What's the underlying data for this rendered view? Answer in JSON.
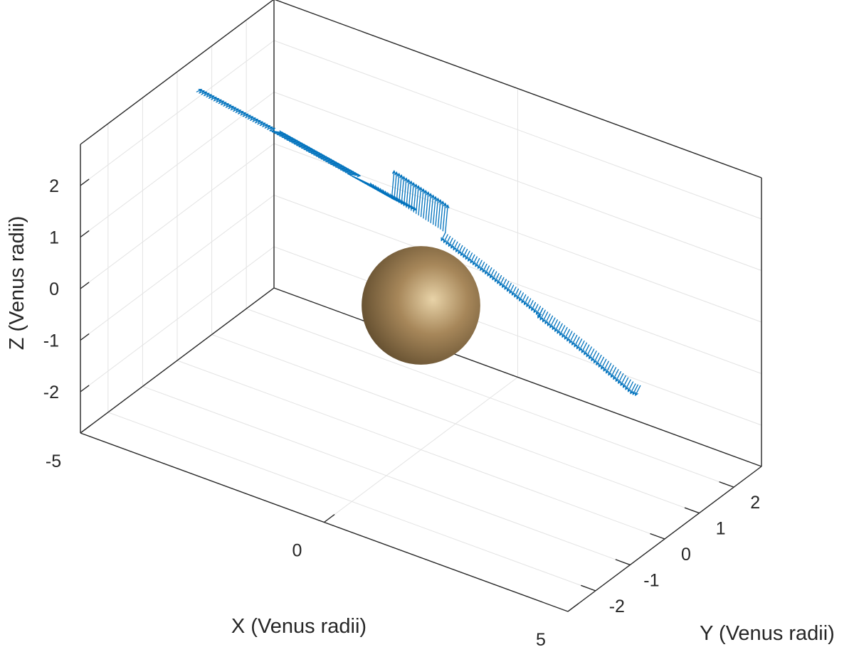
{
  "chart_data": {
    "type": "quiver3d",
    "title": "",
    "xlabel": "X (Venus radii)",
    "ylabel": "Y (Venus radii)",
    "zlabel": "Z (Venus radii)",
    "xlim": [
      -5,
      5
    ],
    "ylim": [
      -2.8,
      2.8
    ],
    "zlim": [
      -2.8,
      2.8
    ],
    "xticks": [
      "-5",
      "0",
      "5"
    ],
    "yticks": [
      "-2",
      "-1",
      "0",
      "1",
      "2"
    ],
    "zticks": [
      "-2",
      "-1",
      "0",
      "1",
      "2"
    ],
    "grid": true,
    "colors": {
      "vectors": "#0072BD",
      "axes": "#262626",
      "grid": "#e3e3e3",
      "planet_light": "#e8d3a8",
      "planet_mid": "#a7875a",
      "planet_dark": "#5e4a2c"
    },
    "planet": {
      "name": "Venus",
      "center": [
        0,
        0,
        0
      ],
      "radius": 1
    },
    "trajectory": {
      "x": [
        -4.6,
        -3.0,
        -1.6,
        -0.5,
        0.4,
        1.4,
        2.4,
        3.4,
        4.4
      ],
      "y": [
        0.0,
        0.0,
        0.0,
        0.0,
        0.0,
        0.0,
        0.0,
        0.0,
        0.0
      ],
      "z": [
        2.55,
        2.3,
        2.05,
        1.85,
        1.62,
        1.25,
        0.85,
        0.45,
        0.0
      ]
    },
    "vector_field": {
      "segments": [
        {
          "from_x": -4.6,
          "to_x": -3.1,
          "dx": 0.1,
          "dy": 0.0,
          "dz": 0.08
        },
        {
          "from_x": -3.1,
          "to_x": -1.5,
          "dx": 0.25,
          "dy": 0.0,
          "dz": 0.05
        },
        {
          "from_x": -1.5,
          "to_x": -0.6,
          "dx": 0.5,
          "dy": 0.0,
          "dz": -0.05
        },
        {
          "from_x": -0.6,
          "to_x": 0.5,
          "dx": 0.05,
          "dy": 0.0,
          "dz": 0.55
        },
        {
          "from_x": 0.5,
          "to_x": 2.5,
          "dx": -0.08,
          "dy": 0.0,
          "dz": -0.18
        },
        {
          "from_x": 2.5,
          "to_x": 4.5,
          "dx": -0.1,
          "dy": 0.0,
          "dz": -0.22
        }
      ]
    }
  }
}
